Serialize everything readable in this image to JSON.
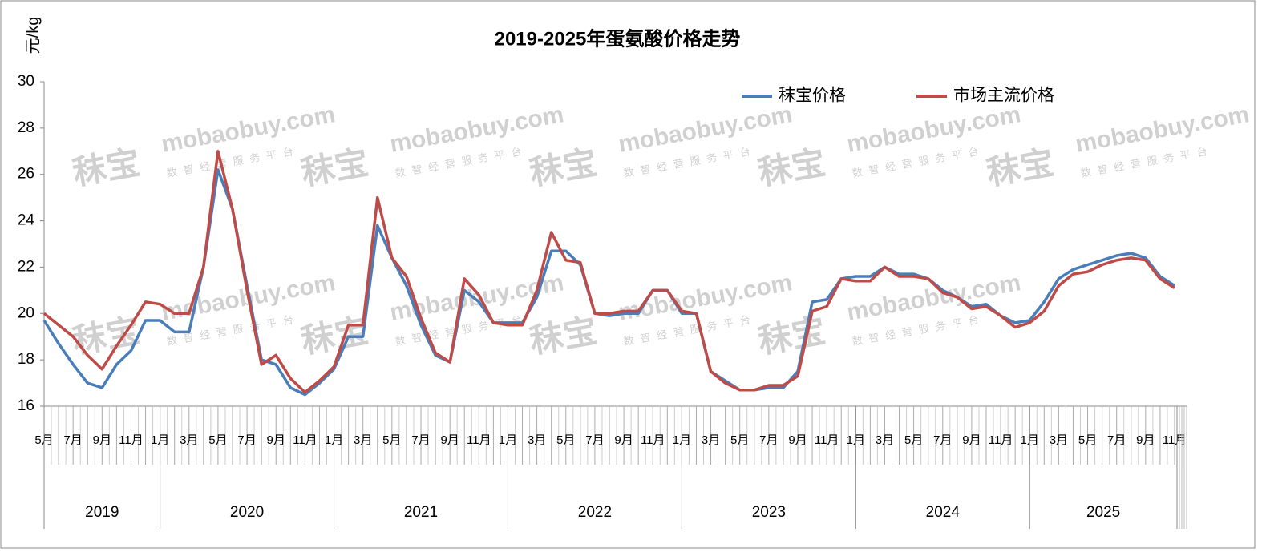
{
  "chart_data": {
    "type": "line",
    "title": "2019-2025年蛋氨酸价格走势",
    "y_label": "元/kg",
    "watermark": {
      "brand": "秣宝",
      "site": "mobaobuy.com",
      "slogan": "数智经营服务平台"
    },
    "categories": [
      "5月",
      null,
      "7月",
      null,
      "9月",
      null,
      "11月",
      null,
      "1月",
      null,
      "3月",
      null,
      "5月",
      null,
      "7月",
      null,
      "9月",
      null,
      "11月",
      null,
      "1月",
      null,
      "3月",
      null,
      "5月",
      null,
      "7月",
      null,
      "9月",
      null,
      "11月",
      null,
      "1月",
      null,
      "3月",
      null,
      "5月",
      null,
      "7月",
      null,
      "9月",
      null,
      "11月",
      null,
      "1月",
      null,
      "3月",
      null,
      "5月",
      null,
      "7月",
      null,
      "9月",
      null,
      "11月",
      null,
      "1月",
      null,
      "3月",
      null,
      "5月",
      null,
      "7月",
      null,
      "9月",
      null,
      "11月",
      null,
      "1月",
      null,
      "3月",
      null,
      "5月",
      null,
      "7月",
      null,
      "9月",
      null,
      "11月"
    ],
    "years": [
      "2019",
      "2020",
      "2021",
      "2022",
      "2023",
      "2024",
      "2025"
    ],
    "series": [
      {
        "name": "秣宝价格",
        "color": "#4a7ebb",
        "values": [
          19.7,
          18.7,
          17.8,
          17.0,
          16.8,
          17.8,
          18.4,
          19.7,
          19.7,
          19.2,
          19.2,
          22.0,
          26.2,
          24.5,
          21.2,
          18.0,
          17.8,
          16.8,
          16.5,
          17.0,
          17.6,
          19.0,
          19.0,
          23.8,
          22.4,
          21.2,
          19.5,
          18.2,
          17.9,
          21.0,
          20.5,
          19.6,
          19.6,
          19.6,
          20.7,
          22.7,
          22.7,
          22.1,
          20.0,
          19.9,
          20.0,
          20.0,
          21.0,
          21.0,
          20.0,
          20.0,
          17.5,
          17.1,
          16.7,
          16.7,
          16.8,
          16.8,
          17.5,
          20.5,
          20.6,
          21.5,
          21.6,
          21.6,
          22.0,
          21.7,
          21.7,
          21.5,
          21.0,
          20.7,
          20.3,
          20.4,
          19.9,
          19.6,
          19.7,
          20.5,
          21.5,
          21.9,
          22.1,
          22.3,
          22.5,
          22.6,
          22.4,
          21.6,
          21.2
        ]
      },
      {
        "name": "市场主流价格",
        "color": "#be4b48",
        "values": [
          20.0,
          19.5,
          19.0,
          18.2,
          17.6,
          18.6,
          19.5,
          20.5,
          20.4,
          20.0,
          20.0,
          22.0,
          27.0,
          24.5,
          21.0,
          17.8,
          18.2,
          17.2,
          16.6,
          17.1,
          17.7,
          19.5,
          19.5,
          25.0,
          22.4,
          21.6,
          19.8,
          18.3,
          17.9,
          21.5,
          20.8,
          19.6,
          19.5,
          19.5,
          21.0,
          23.5,
          22.3,
          22.2,
          20.0,
          20.0,
          20.1,
          20.1,
          21.0,
          21.0,
          20.1,
          20.0,
          17.5,
          17.0,
          16.7,
          16.7,
          16.9,
          16.9,
          17.3,
          20.1,
          20.3,
          21.5,
          21.4,
          21.4,
          22.0,
          21.6,
          21.6,
          21.5,
          20.9,
          20.7,
          20.2,
          20.3,
          19.9,
          19.4,
          19.6,
          20.1,
          21.2,
          21.7,
          21.8,
          22.1,
          22.3,
          22.4,
          22.3,
          21.5,
          21.1
        ]
      }
    ],
    "ylim": [
      16,
      30
    ],
    "yticks": [
      16,
      18,
      20,
      22,
      24,
      26,
      28,
      30
    ],
    "legend": "top-right"
  }
}
